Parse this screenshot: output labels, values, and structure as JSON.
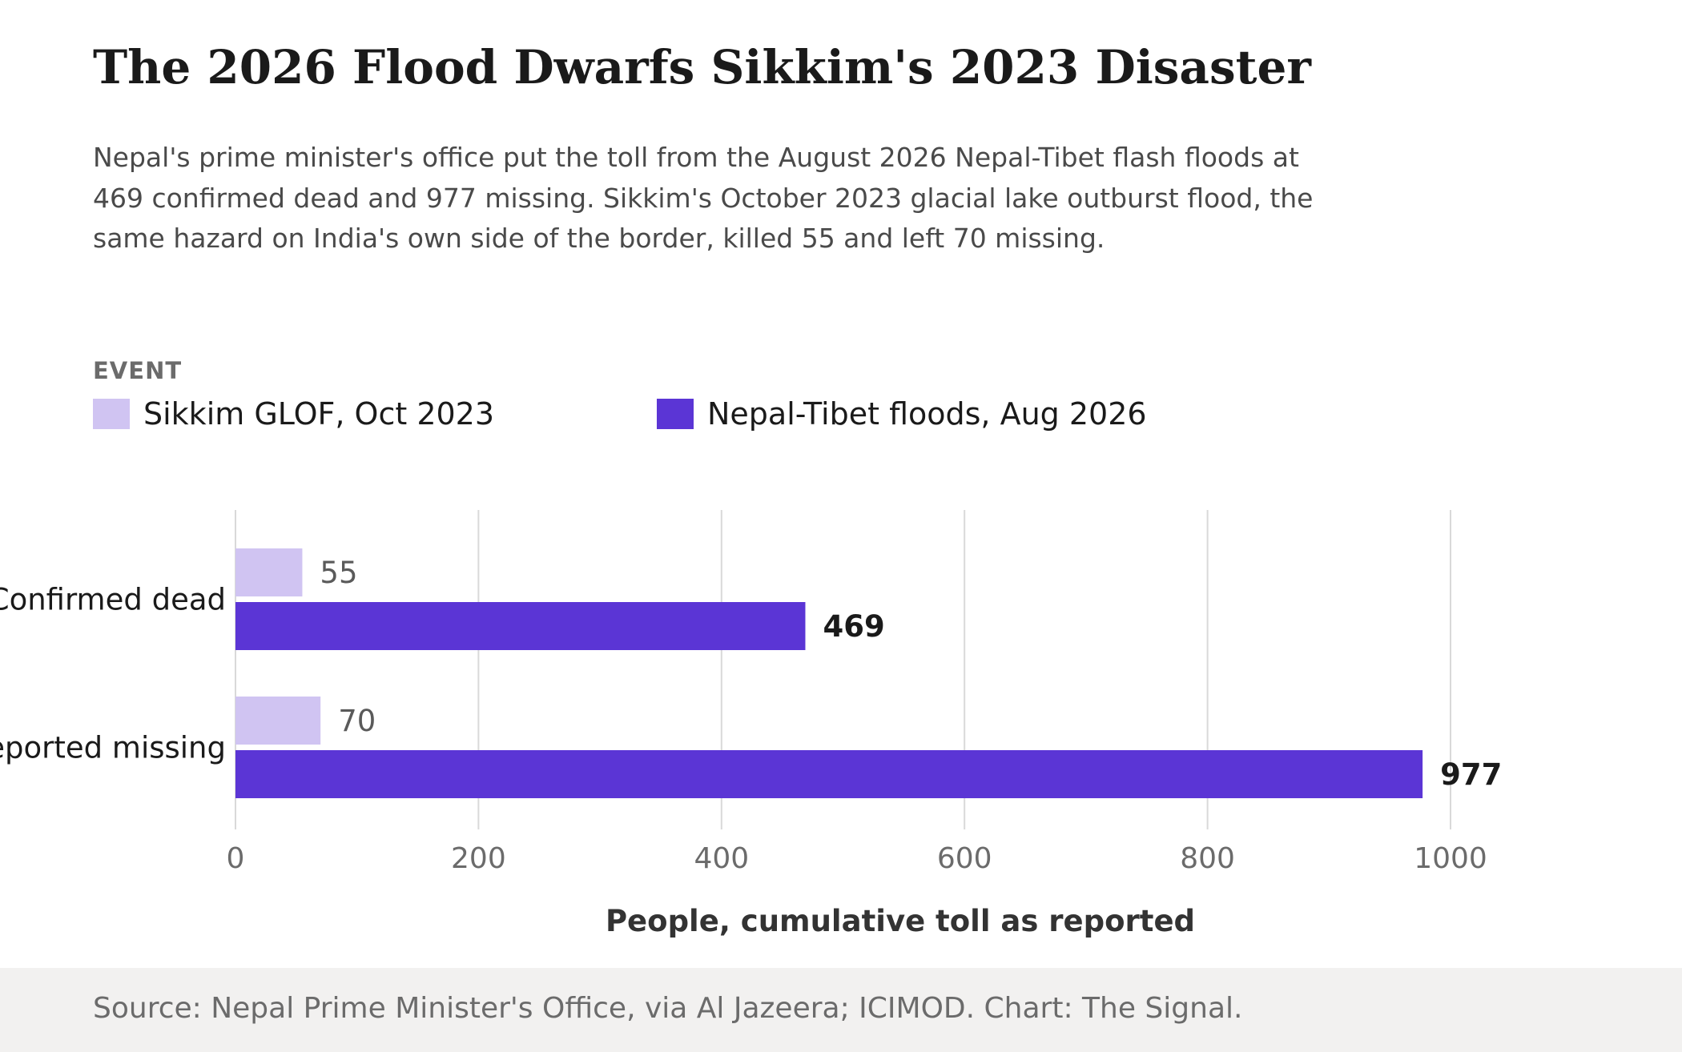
{
  "title": "The 2026 Flood Dwarfs Sikkim's 2023 Disaster",
  "subtitle": "Nepal's prime minister's office put the toll from the August 2026 Nepal-Tibet flash floods at 469 confirmed dead and 977 missing. Sikkim's October 2023 glacial lake outburst flood, the same hazard on India's own side of the border, killed 55 and left 70 missing.",
  "legend": {
    "title": "EVENT",
    "items": [
      {
        "label": "Sikkim GLOF, Oct 2023",
        "color": "#d0c4f2"
      },
      {
        "label": "Nepal-Tibet floods, Aug 2026",
        "color": "#5b35d5"
      }
    ]
  },
  "source": "Source: Nepal Prime Minister's Office, via Al Jazeera; ICIMOD. Chart: The Signal.",
  "chart_data": {
    "type": "bar",
    "orientation": "horizontal",
    "categories": [
      "Confirmed dead",
      "Reported missing"
    ],
    "series": [
      {
        "name": "Sikkim GLOF, Oct 2023",
        "values": [
          55,
          70
        ],
        "color": "#d0c4f2"
      },
      {
        "name": "Nepal-Tibet floods, Aug 2026",
        "values": [
          469,
          977
        ],
        "color": "#5b35d5"
      }
    ],
    "xlabel": "People, cumulative toll as reported",
    "ylabel": "",
    "xlim": [
      0,
      1000
    ],
    "xticks": [
      0,
      200,
      400,
      600,
      800,
      1000
    ],
    "grid": true,
    "legend_position": "top-left"
  }
}
